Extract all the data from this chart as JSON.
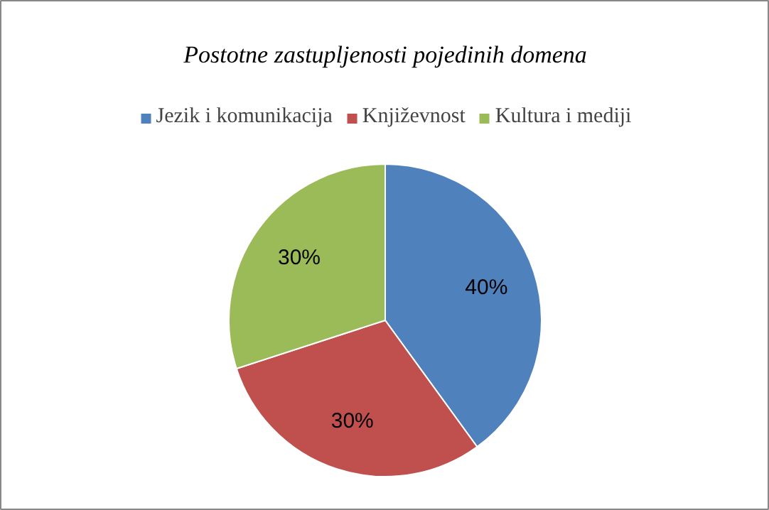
{
  "chart_data": {
    "type": "pie",
    "title": "Postotne zastupljenosti pojedinih domena",
    "categories": [
      "Jezik i komunikacija",
      "Književnost",
      "Kultura i mediji"
    ],
    "values": [
      40,
      30,
      30
    ],
    "colors": [
      "#4f81bd",
      "#c0504d",
      "#9bbb59"
    ],
    "value_labels": [
      "40%",
      "30%",
      "30%"
    ],
    "legend": "top"
  }
}
